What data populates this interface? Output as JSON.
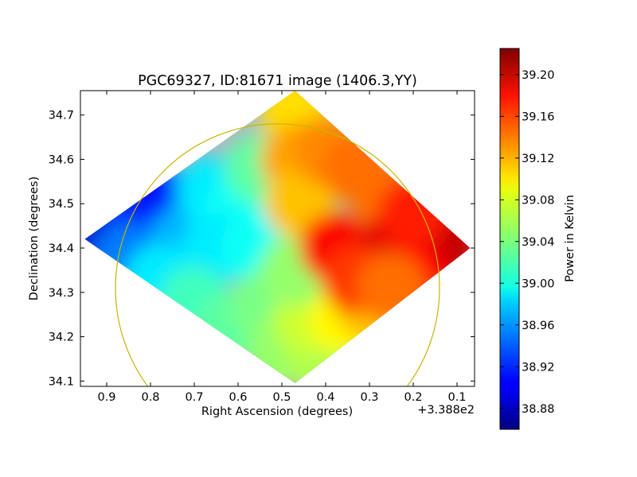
{
  "chart_data": {
    "type": "heatmap",
    "title": "PGC69327, ID:81671 image (1406.3,YY)",
    "xlabel": "Right Ascension (degrees)",
    "ylabel": "Declination (degrees)",
    "x_offset_label": "+3.388e2",
    "xlim": [
      0.96,
      0.06
    ],
    "ylim": [
      34.088,
      34.755
    ],
    "x_ticks": [
      {
        "value": 0.9,
        "label": "0.9"
      },
      {
        "value": 0.8,
        "label": "0.8"
      },
      {
        "value": 0.7,
        "label": "0.7"
      },
      {
        "value": 0.6,
        "label": "0.6"
      },
      {
        "value": 0.5,
        "label": "0.5"
      },
      {
        "value": 0.4,
        "label": "0.4"
      },
      {
        "value": 0.3,
        "label": "0.3"
      },
      {
        "value": 0.2,
        "label": "0.2"
      },
      {
        "value": 0.1,
        "label": "0.1"
      }
    ],
    "y_ticks": [
      {
        "value": 34.1,
        "label": "34.1"
      },
      {
        "value": 34.2,
        "label": "34.2"
      },
      {
        "value": 34.3,
        "label": "34.3"
      },
      {
        "value": 34.4,
        "label": "34.4"
      },
      {
        "value": 34.5,
        "label": "34.5"
      },
      {
        "value": 34.6,
        "label": "34.6"
      },
      {
        "value": 34.7,
        "label": "34.7"
      }
    ],
    "colorbar": {
      "label": "Power in Kelvin",
      "colormap": "jet",
      "range": [
        38.86,
        39.225
      ],
      "ticks": [
        {
          "value": 38.88,
          "label": "38.88"
        },
        {
          "value": 38.92,
          "label": "38.92"
        },
        {
          "value": 38.96,
          "label": "38.96"
        },
        {
          "value": 39.0,
          "label": "39.00"
        },
        {
          "value": 39.04,
          "label": "39.04"
        },
        {
          "value": 39.08,
          "label": "39.08"
        },
        {
          "value": 39.12,
          "label": "39.12"
        },
        {
          "value": 39.16,
          "label": "39.16"
        },
        {
          "value": 39.2,
          "label": "39.20"
        }
      ]
    },
    "coverage_diamond": {
      "vertices": [
        [
          0.95,
          34.42
        ],
        [
          0.47,
          34.755
        ],
        [
          0.07,
          34.4
        ],
        [
          0.47,
          34.095
        ]
      ]
    },
    "circle": {
      "center": [
        0.51,
        34.31
      ],
      "radius_x": 0.37,
      "radius_y": 0.37,
      "color": "#c8b400"
    },
    "samples": [
      {
        "x": 0.9,
        "y": 34.42,
        "value": 38.89
      },
      {
        "x": 0.82,
        "y": 34.47,
        "value": 38.92
      },
      {
        "x": 0.76,
        "y": 34.5,
        "value": 38.91
      },
      {
        "x": 0.85,
        "y": 34.38,
        "value": 38.95
      },
      {
        "x": 0.72,
        "y": 34.42,
        "value": 38.97
      },
      {
        "x": 0.78,
        "y": 34.33,
        "value": 38.99
      },
      {
        "x": 0.66,
        "y": 34.53,
        "value": 38.99
      },
      {
        "x": 0.6,
        "y": 34.48,
        "value": 39.0
      },
      {
        "x": 0.65,
        "y": 34.4,
        "value": 38.99
      },
      {
        "x": 0.7,
        "y": 34.28,
        "value": 39.02
      },
      {
        "x": 0.62,
        "y": 34.22,
        "value": 39.03
      },
      {
        "x": 0.55,
        "y": 34.58,
        "value": 39.03
      },
      {
        "x": 0.56,
        "y": 34.4,
        "value": 39.0
      },
      {
        "x": 0.54,
        "y": 34.27,
        "value": 39.04
      },
      {
        "x": 0.5,
        "y": 34.17,
        "value": 39.05
      },
      {
        "x": 0.42,
        "y": 34.16,
        "value": 39.06
      },
      {
        "x": 0.44,
        "y": 34.24,
        "value": 39.07
      },
      {
        "x": 0.36,
        "y": 34.24,
        "value": 39.09
      },
      {
        "x": 0.3,
        "y": 34.27,
        "value": 39.11
      },
      {
        "x": 0.47,
        "y": 34.35,
        "value": 39.05
      },
      {
        "x": 0.47,
        "y": 34.71,
        "value": 39.1
      },
      {
        "x": 0.47,
        "y": 34.6,
        "value": 39.12
      },
      {
        "x": 0.46,
        "y": 34.5,
        "value": 39.11
      },
      {
        "x": 0.4,
        "y": 34.62,
        "value": 39.13
      },
      {
        "x": 0.33,
        "y": 34.58,
        "value": 39.14
      },
      {
        "x": 0.27,
        "y": 34.52,
        "value": 39.14
      },
      {
        "x": 0.38,
        "y": 34.4,
        "value": 39.18
      },
      {
        "x": 0.25,
        "y": 34.4,
        "value": 39.19
      },
      {
        "x": 0.13,
        "y": 34.41,
        "value": 39.2
      },
      {
        "x": 0.2,
        "y": 34.34,
        "value": 39.18
      },
      {
        "x": 0.2,
        "y": 34.48,
        "value": 39.17
      },
      {
        "x": 0.33,
        "y": 34.33,
        "value": 39.16
      },
      {
        "x": 0.25,
        "y": 34.31,
        "value": 39.14
      }
    ]
  }
}
